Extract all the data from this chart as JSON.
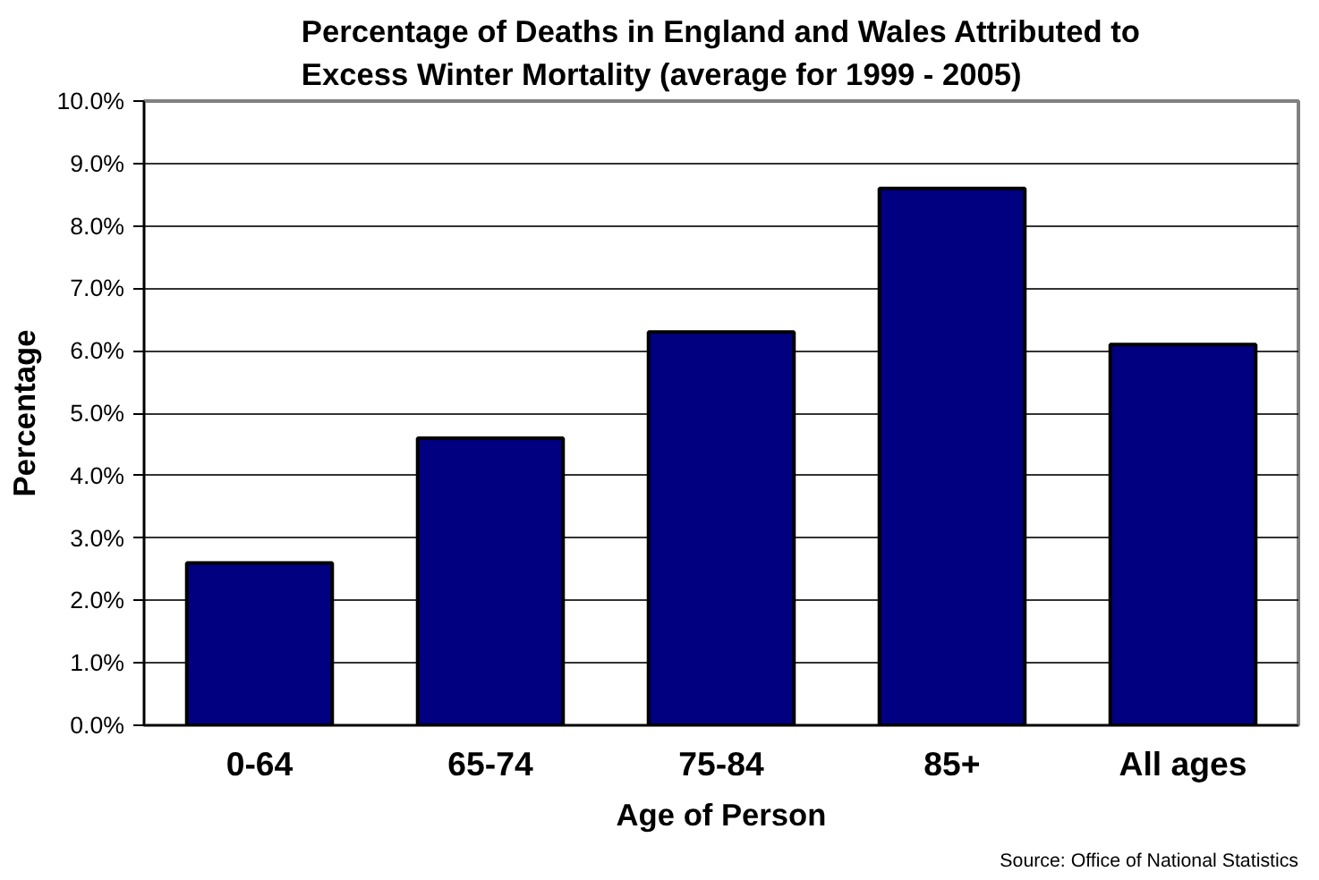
{
  "chart_data": {
    "type": "bar",
    "title": "Percentage of Deaths in England and Wales Attributed to\nExcess Winter Mortality (average for 1999 - 2005)",
    "xlabel": "Age of Person",
    "ylabel": "Percentage",
    "categories": [
      "0-64",
      "65-74",
      "75-84",
      "85+",
      "All ages"
    ],
    "values": [
      2.6,
      4.6,
      6.3,
      8.6,
      6.1
    ],
    "color": "#000080",
    "ylim": [
      0,
      10
    ],
    "yticks": [
      {
        "value": 0,
        "label": "0.0%"
      },
      {
        "value": 1,
        "label": "1.0%"
      },
      {
        "value": 2,
        "label": "2.0%"
      },
      {
        "value": 3,
        "label": "3.0%"
      },
      {
        "value": 4,
        "label": "4.0%"
      },
      {
        "value": 5,
        "label": "5.0%"
      },
      {
        "value": 6,
        "label": "6.0%"
      },
      {
        "value": 7,
        "label": "7.0%"
      },
      {
        "value": 8,
        "label": "8.0%"
      },
      {
        "value": 9,
        "label": "9.0%"
      },
      {
        "value": 10,
        "label": "10.0%"
      }
    ],
    "grid": "y",
    "annotations": [
      "Source: Office of National Statistics"
    ]
  }
}
